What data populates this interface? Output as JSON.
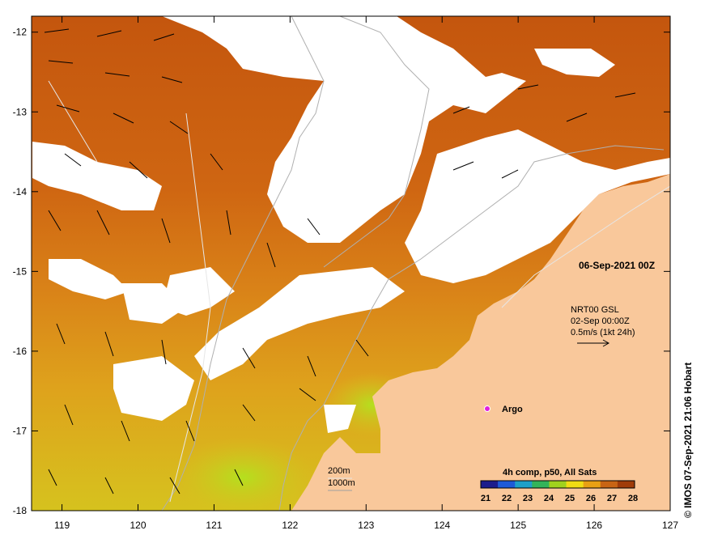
{
  "date_label": "06-Sep-2021 00Z",
  "current_info": {
    "line1": "NRT00 GSL",
    "line2": "02-Sep 00:00Z",
    "line3": "0.5m/s (1kt 24h)"
  },
  "argo_label": "Argo",
  "depth_legend": {
    "shallow": "200m",
    "deep": "1000m"
  },
  "colorbar": {
    "title": "4h comp, p50, All Sats",
    "ticks": [
      "21",
      "22",
      "23",
      "24",
      "25",
      "26",
      "27",
      "28"
    ],
    "colors": [
      "#1c1c8c",
      "#1e5ad8",
      "#1ea0c8",
      "#32b45a",
      "#a0d21e",
      "#f0dc14",
      "#e8a014",
      "#c86414",
      "#a03c0a"
    ]
  },
  "credit": "© IMOS 07-Sep-2021 21:06 Hobart",
  "axes": {
    "x_ticks": [
      "119",
      "120",
      "121",
      "122",
      "123",
      "124",
      "125",
      "126",
      "127"
    ],
    "y_ticks": [
      "-12",
      "-13",
      "-14",
      "-15",
      "-16",
      "-17",
      "-18"
    ]
  },
  "colors": {
    "land": "#f9c89b",
    "cloud": "#ffffff",
    "sst_warm": "#c65a10",
    "sst_mid": "#e08a18",
    "sst_cool": "#d8c018"
  }
}
